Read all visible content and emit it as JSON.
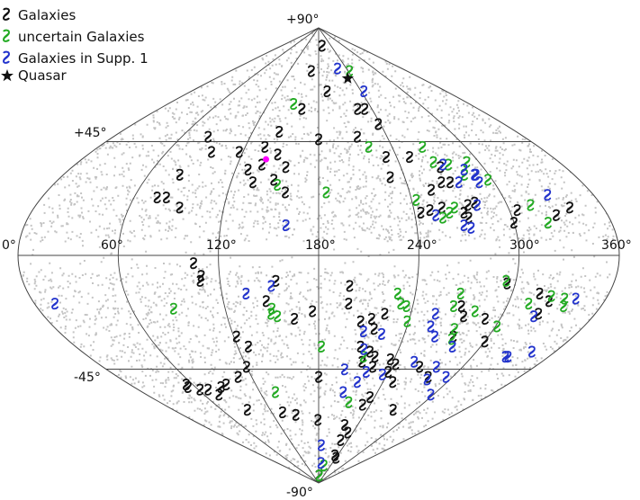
{
  "chart_data": {
    "type": "scatter",
    "projection": "sinusoidal",
    "title": "",
    "xlabel": "",
    "ylabel": "",
    "xlim": [
      0,
      360
    ],
    "ylim": [
      -90,
      90
    ],
    "grid": true,
    "legend_position": "top-left",
    "x_tick_labels": [
      "0°",
      "60°",
      "120°",
      "180°",
      "240°",
      "300°",
      "360°"
    ],
    "y_tick_labels": [
      "+90°",
      "+45°",
      "-45°",
      "-90°"
    ],
    "colors": {
      "galaxies": "#111111",
      "uncertain": "#22aa22",
      "supp": "#2233cc",
      "quasar": "#111111",
      "highlight": "#ff00ff",
      "background": "#c4c4c4",
      "grid": "#444444"
    },
    "series": [
      {
        "name": "Galaxies",
        "marker": "galaxy-swirl",
        "color": "#111111",
        "points": [
          [
            165,
            73
          ],
          [
            197,
            83
          ],
          [
            161,
            58
          ],
          [
            192,
            65
          ],
          [
            232,
            58
          ],
          [
            224,
            58
          ],
          [
            238,
            52
          ],
          [
            214,
            47
          ],
          [
            180,
            46
          ],
          [
            144,
            49
          ],
          [
            117,
            41
          ],
          [
            136,
            43
          ],
          [
            148,
            40
          ],
          [
            138,
            36
          ],
          [
            135,
            29
          ],
          [
            149,
            30
          ],
          [
            156,
            35
          ],
          [
            158,
            25
          ],
          [
            129,
            34
          ],
          [
            95,
            41
          ],
          [
            83,
            47
          ],
          [
            82,
            32
          ],
          [
            75,
            23
          ],
          [
            81,
            23
          ],
          [
            92,
            19
          ],
          [
            232,
            39
          ],
          [
            230,
            31
          ],
          [
            250,
            39
          ],
          [
            269,
            35
          ],
          [
            264,
            29
          ],
          [
            270,
            29
          ],
          [
            255,
            26
          ],
          [
            258,
            19
          ],
          [
            244,
            17
          ],
          [
            250,
            18
          ],
          [
            275,
            20
          ],
          [
            271,
            17
          ],
          [
            273,
            15
          ],
          [
            280,
            21
          ],
          [
            305,
            18
          ],
          [
            300,
            13
          ],
          [
            328,
            16
          ],
          [
            339,
            19
          ],
          [
            105,
            -3
          ],
          [
            109,
            -8
          ],
          [
            108,
            -10
          ],
          [
            147,
            -18
          ],
          [
            154,
            -10
          ],
          [
            176,
            -22
          ],
          [
            164,
            -25
          ],
          [
            199,
            -12
          ],
          [
            199,
            -19
          ],
          [
            208,
            -26
          ],
          [
            223,
            -23
          ],
          [
            215,
            -25
          ],
          [
            218,
            -29
          ],
          [
            211,
            -36
          ],
          [
            219,
            -38
          ],
          [
            215,
            -42
          ],
          [
            224,
            -40
          ],
          [
            225,
            -44
          ],
          [
            237,
            -41
          ],
          [
            240,
            -46
          ],
          [
            243,
            -43
          ],
          [
            235,
            -56
          ],
          [
            231,
            -59
          ],
          [
            249,
            -50
          ],
          [
            271,
            -20
          ],
          [
            275,
            -24
          ],
          [
            275,
            -32
          ],
          [
            295,
            -11
          ],
          [
            317,
            -15
          ],
          [
            325,
            -18
          ],
          [
            323,
            -23
          ],
          [
            278,
            -48
          ],
          [
            272,
            -61
          ],
          [
            264,
            -44
          ],
          [
            290,
            -25
          ],
          [
            300,
            -34
          ],
          [
            122,
            -32
          ],
          [
            128,
            -36
          ],
          [
            120,
            -44
          ],
          [
            108,
            -48
          ],
          [
            92,
            -51
          ],
          [
            85,
            -52
          ],
          [
            76,
            -55
          ],
          [
            70,
            -53
          ],
          [
            62,
            -53
          ],
          [
            54,
            -51
          ],
          [
            53,
            -52
          ],
          [
            134,
            -62
          ],
          [
            150,
            -63
          ],
          [
            92,
            -61
          ],
          [
            179,
            -65
          ],
          [
            180,
            -48
          ],
          [
            184,
            -87
          ],
          [
            225,
            -73
          ],
          [
            220,
            -67
          ],
          [
            231,
            -70
          ],
          [
            231,
            -79
          ],
          [
            240,
            -80
          ]
        ]
      },
      {
        "name": "uncertain Galaxies",
        "marker": "galaxy-swirl",
        "color": "#22aa22",
        "points": [
          [
            150,
            60
          ],
          [
            243,
            73
          ],
          [
            221,
            43
          ],
          [
            265,
            43
          ],
          [
            266,
            37
          ],
          [
            276,
            36
          ],
          [
            291,
            37
          ],
          [
            283,
            32
          ],
          [
            185,
            25
          ],
          [
            243,
            22
          ],
          [
            257,
            15
          ],
          [
            262,
            17
          ],
          [
            266,
            19
          ],
          [
            297,
            30
          ],
          [
            315,
            20
          ],
          [
            321,
            13
          ],
          [
            152,
            28
          ],
          [
            87,
            -21
          ],
          [
            153,
            -24
          ],
          [
            150,
            -21
          ],
          [
            149,
            -23
          ],
          [
            182,
            -36
          ],
          [
            215,
            -40
          ],
          [
            239,
            -26
          ],
          [
            232,
            -19
          ],
          [
            229,
            -15
          ],
          [
            236,
            -20
          ],
          [
            266,
            -20
          ],
          [
            268,
            -15
          ],
          [
            281,
            -22
          ],
          [
            273,
            -29
          ],
          [
            275,
            -33
          ],
          [
            301,
            -28
          ],
          [
            325,
            -16
          ],
          [
            334,
            -17
          ],
          [
            336,
            -20
          ],
          [
            294,
            -10
          ],
          [
            313,
            -19
          ],
          [
            136,
            -54
          ],
          [
            214,
            -58
          ],
          [
            187,
            -87
          ],
          [
            206,
            -83
          ]
        ]
      },
      {
        "name": "Galaxies in Supp. 1",
        "marker": "galaxy-swirl",
        "color": "#2233cc",
        "points": [
          [
            221,
            74
          ],
          [
            244,
            65
          ],
          [
            272,
            36
          ],
          [
            276,
            29
          ],
          [
            291,
            32
          ],
          [
            285,
            34
          ],
          [
            290,
            29
          ],
          [
            290,
            32
          ],
          [
            330,
            24
          ],
          [
            281,
            20
          ],
          [
            253,
            16
          ],
          [
            269,
            12
          ],
          [
            273,
            11
          ],
          [
            160,
            12
          ],
          [
            13,
            -19
          ],
          [
            135,
            -15
          ],
          [
            151,
            -12
          ],
          [
            211,
            -30
          ],
          [
            224,
            -31
          ],
          [
            214,
            -37
          ],
          [
            221,
            -46
          ],
          [
            202,
            -45
          ],
          [
            216,
            -50
          ],
          [
            205,
            -54
          ],
          [
            236,
            -47
          ],
          [
            257,
            -42
          ],
          [
            262,
            -32
          ],
          [
            256,
            -28
          ],
          [
            279,
            -36
          ],
          [
            256,
            -23
          ],
          [
            278,
            -44
          ],
          [
            321,
            -24
          ],
          [
            341,
            -17
          ],
          [
            342,
            -38
          ],
          [
            326,
            -40
          ],
          [
            328,
            -40
          ],
          [
            294,
            -48
          ],
          [
            297,
            -55
          ],
          [
            279,
            -49
          ],
          [
            186,
            -75
          ],
          [
            190,
            -82
          ]
        ]
      },
      {
        "name": "Quasar",
        "marker": "star",
        "color": "#111111",
        "points": [
          [
            231,
            70
          ]
        ]
      }
    ],
    "highlight_points": [
      [
        140,
        38
      ]
    ]
  },
  "legend": {
    "items": [
      {
        "label": "Galaxies",
        "color": "#111111",
        "symbol": "galaxy"
      },
      {
        "label": "uncertain Galaxies",
        "color": "#22aa22",
        "symbol": "galaxy"
      },
      {
        "label": "Galaxies in Supp. 1",
        "color": "#2233cc",
        "symbol": "galaxy"
      },
      {
        "label": "Quasar",
        "color": "#111111",
        "symbol": "star"
      }
    ]
  }
}
